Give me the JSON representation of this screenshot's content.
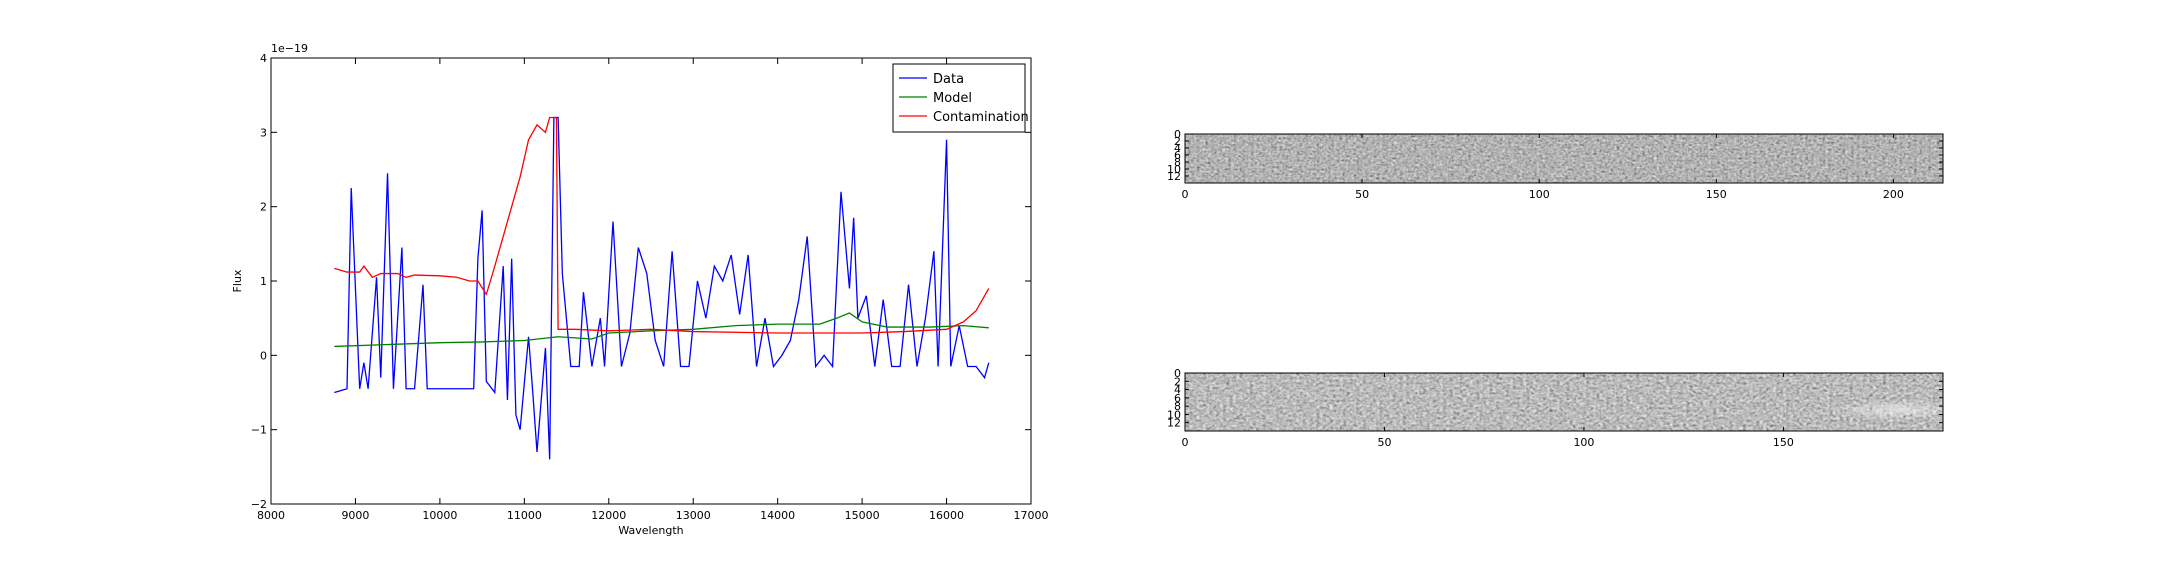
{
  "chart_data": [
    {
      "type": "line",
      "xlabel": "Wavelength",
      "ylabel": "Flux",
      "offset_label": "1e−19",
      "xlim": [
        8000,
        17000
      ],
      "xticks": [
        8000,
        9000,
        10000,
        11000,
        12000,
        13000,
        14000,
        15000,
        16000,
        17000
      ],
      "ylim": [
        -2,
        4
      ],
      "yticks": [
        {
          "value": -2,
          "label": "−2"
        },
        {
          "value": -1,
          "label": "−1"
        },
        0,
        1,
        2,
        3,
        4
      ],
      "legend": "upper right",
      "series": [
        {
          "name": "Data",
          "color": "#0000ff",
          "x": [
            8750,
            8900,
            8950,
            9050,
            9100,
            9150,
            9250,
            9300,
            9380,
            9450,
            9550,
            9600,
            9700,
            9800,
            9850,
            10000,
            10200,
            10400,
            10450,
            10500,
            10550,
            10650,
            10750,
            10800,
            10850,
            10900,
            10950,
            11050,
            11100,
            11150,
            11250,
            11300,
            11350,
            11400,
            11450,
            11550,
            11650,
            11700,
            11800,
            11900,
            11950,
            12050,
            12150,
            12250,
            12350,
            12450,
            12550,
            12650,
            12750,
            12850,
            12950,
            13050,
            13150,
            13250,
            13350,
            13450,
            13550,
            13650,
            13750,
            13850,
            13950,
            14050,
            14150,
            14250,
            14350,
            14450,
            14550,
            14650,
            14750,
            14850,
            14900,
            14950,
            15050,
            15150,
            15250,
            15350,
            15450,
            15550,
            15650,
            15750,
            15850,
            15900,
            16000,
            16050,
            16150,
            16250,
            16350,
            16450,
            16500
          ],
          "values": [
            -0.5,
            -0.45,
            2.25,
            -0.45,
            -0.1,
            -0.45,
            1.05,
            -0.3,
            2.45,
            -0.45,
            1.45,
            -0.45,
            -0.45,
            0.95,
            -0.45,
            -0.45,
            -0.45,
            -0.45,
            1.3,
            1.95,
            -0.35,
            -0.5,
            1.2,
            -0.6,
            1.3,
            -0.8,
            -1.0,
            0.25,
            -0.5,
            -1.3,
            0.1,
            -1.4,
            3.2,
            3.2,
            1.1,
            -0.15,
            -0.15,
            0.85,
            -0.15,
            0.5,
            -0.15,
            1.8,
            -0.15,
            0.3,
            1.45,
            1.1,
            0.2,
            -0.15,
            1.4,
            -0.15,
            -0.15,
            1.0,
            0.5,
            1.2,
            1.0,
            1.35,
            0.55,
            1.35,
            -0.15,
            0.5,
            -0.15,
            0,
            0.2,
            0.75,
            1.6,
            -0.15,
            0,
            -0.15,
            2.2,
            0.9,
            1.85,
            0.5,
            0.8,
            -0.15,
            0.75,
            -0.15,
            -0.15,
            0.95,
            -0.15,
            0.5,
            1.4,
            -0.15,
            2.9,
            -0.15,
            0.4,
            -0.15,
            -0.15,
            -0.3,
            -0.1
          ]
        },
        {
          "name": "Model",
          "color": "#008000",
          "x": [
            8750,
            9500,
            10000,
            10500,
            11000,
            11400,
            11800,
            12000,
            12500,
            13000,
            13500,
            14000,
            14500,
            14700,
            14850,
            15000,
            15300,
            15800,
            16200,
            16500
          ],
          "values": [
            0.12,
            0.15,
            0.17,
            0.18,
            0.2,
            0.25,
            0.22,
            0.3,
            0.33,
            0.35,
            0.4,
            0.42,
            0.42,
            0.5,
            0.57,
            0.45,
            0.38,
            0.38,
            0.4,
            0.37
          ]
        },
        {
          "name": "Contamination",
          "color": "#ff0000",
          "x": [
            8750,
            8900,
            9050,
            9100,
            9200,
            9300,
            9500,
            9600,
            9700,
            10000,
            10200,
            10350,
            10450,
            10550,
            10650,
            10750,
            10850,
            10950,
            11050,
            11150,
            11250,
            11300,
            11380,
            11400,
            11600,
            12000,
            12500,
            13000,
            14000,
            15000,
            15500,
            16000,
            16200,
            16350,
            16500
          ],
          "values": [
            1.17,
            1.12,
            1.12,
            1.2,
            1.05,
            1.1,
            1.1,
            1.05,
            1.08,
            1.07,
            1.05,
            1.0,
            1.0,
            0.82,
            1.2,
            1.6,
            2.0,
            2.4,
            2.9,
            3.1,
            3.0,
            3.2,
            3.2,
            0.35,
            0.35,
            0.33,
            0.35,
            0.32,
            0.3,
            0.3,
            0.32,
            0.35,
            0.45,
            0.6,
            0.9
          ]
        }
      ]
    },
    {
      "type": "image",
      "xlim": [
        0,
        214
      ],
      "xticks": [
        0,
        50,
        100,
        150,
        200
      ],
      "ylim": [
        14,
        0
      ],
      "yticks": [
        0,
        2,
        4,
        6,
        8,
        10,
        12
      ]
    },
    {
      "type": "image",
      "xlim": [
        0,
        190
      ],
      "xticks": [
        0,
        50,
        100,
        150
      ],
      "ylim": [
        14,
        0
      ],
      "yticks": [
        0,
        2,
        4,
        6,
        8,
        10,
        12
      ]
    }
  ]
}
